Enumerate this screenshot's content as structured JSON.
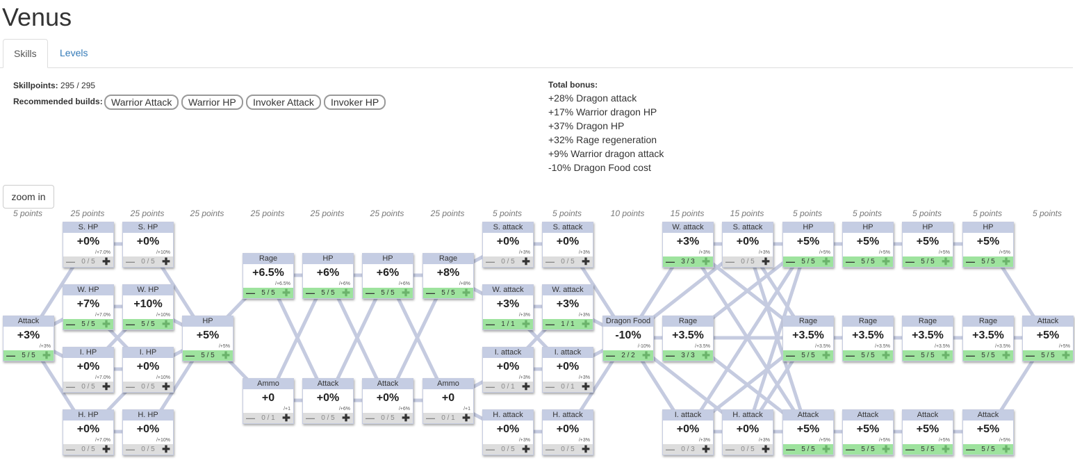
{
  "title": "Venus",
  "tabs": [
    {
      "label": "Skills"
    },
    {
      "label": "Levels"
    }
  ],
  "info": {
    "skillpoints_label": "Skillpoints:",
    "skillpoints_value": "295 / 295",
    "builds_label": "Recommended builds:",
    "builds": [
      "Warrior Attack",
      "Warrior HP",
      "Invoker Attack",
      "Invoker HP"
    ]
  },
  "bonus": {
    "title": "Total bonus:",
    "lines": [
      "+28% Dragon attack",
      "+17% Warrior dragon HP",
      "+37% Dragon HP",
      "+32% Rage regeneration",
      "+9% Warrior dragon attack",
      "-10% Dragon Food cost"
    ]
  },
  "zoom_label": "zoom in",
  "columns": [
    "5 points",
    "25 points",
    "25 points",
    "25 points",
    "25 points",
    "25 points",
    "25 points",
    "25 points",
    "5 points",
    "5 points",
    "10 points",
    "15 points",
    "15 points",
    "5 points",
    "5 points",
    "5 points",
    "5 points",
    "5 points"
  ],
  "nodes": [
    {
      "id": "c0",
      "name": "Attack",
      "value": "+3%",
      "inc": "/+3%",
      "count": "5 / 5",
      "on": true
    },
    {
      "id": "c1a",
      "name": "S. HP",
      "value": "+0%",
      "inc": "/+7.0%",
      "count": "0 / 5",
      "on": false
    },
    {
      "id": "c1b",
      "name": "W. HP",
      "value": "+7%",
      "inc": "/+7.0%",
      "count": "5 / 5",
      "on": true
    },
    {
      "id": "c1c",
      "name": "I. HP",
      "value": "+0%",
      "inc": "/+7.0%",
      "count": "0 / 5",
      "on": false
    },
    {
      "id": "c1d",
      "name": "H. HP",
      "value": "+0%",
      "inc": "/+7.0%",
      "count": "0 / 5",
      "on": false
    },
    {
      "id": "c2a",
      "name": "S. HP",
      "value": "+0%",
      "inc": "/+10%",
      "count": "0 / 5",
      "on": false
    },
    {
      "id": "c2b",
      "name": "W. HP",
      "value": "+10%",
      "inc": "/+10%",
      "count": "5 / 5",
      "on": true
    },
    {
      "id": "c2c",
      "name": "I. HP",
      "value": "+0%",
      "inc": "/+10%",
      "count": "0 / 5",
      "on": false
    },
    {
      "id": "c2d",
      "name": "H. HP",
      "value": "+0%",
      "inc": "/+10%",
      "count": "0 / 5",
      "on": false
    },
    {
      "id": "c3",
      "name": "HP",
      "value": "+5%",
      "inc": "/+5%",
      "count": "5 / 5",
      "on": true
    },
    {
      "id": "c4a",
      "name": "Rage",
      "value": "+6.5%",
      "inc": "/+6.5%",
      "count": "5 / 5",
      "on": true
    },
    {
      "id": "c4b",
      "name": "Ammo",
      "value": "+0",
      "inc": "/+1",
      "count": "0 / 1",
      "on": false
    },
    {
      "id": "c5a",
      "name": "HP",
      "value": "+6%",
      "inc": "/+6%",
      "count": "5 / 5",
      "on": true
    },
    {
      "id": "c5b",
      "name": "Attack",
      "value": "+0%",
      "inc": "/+6%",
      "count": "0 / 5",
      "on": false
    },
    {
      "id": "c6a",
      "name": "HP",
      "value": "+6%",
      "inc": "/+6%",
      "count": "5 / 5",
      "on": true
    },
    {
      "id": "c6b",
      "name": "Attack",
      "value": "+0%",
      "inc": "/+6%",
      "count": "0 / 5",
      "on": false
    },
    {
      "id": "c7a",
      "name": "Rage",
      "value": "+8%",
      "inc": "/+8%",
      "count": "5 / 5",
      "on": true
    },
    {
      "id": "c7b",
      "name": "Ammo",
      "value": "+0",
      "inc": "/+1",
      "count": "0 / 1",
      "on": false
    },
    {
      "id": "c8a",
      "name": "S. attack",
      "value": "+0%",
      "inc": "/+3%",
      "count": "0 / 5",
      "on": false
    },
    {
      "id": "c8b",
      "name": "W. attack",
      "value": "+3%",
      "inc": "/+3%",
      "count": "1 / 1",
      "on": true
    },
    {
      "id": "c8c",
      "name": "I. attack",
      "value": "+0%",
      "inc": "/+3%",
      "count": "0 / 1",
      "on": false
    },
    {
      "id": "c8d",
      "name": "H. attack",
      "value": "+0%",
      "inc": "/+3%",
      "count": "0 / 5",
      "on": false
    },
    {
      "id": "c9a",
      "name": "S. attack",
      "value": "+0%",
      "inc": "/+3%",
      "count": "0 / 5",
      "on": false
    },
    {
      "id": "c9b",
      "name": "W. attack",
      "value": "+3%",
      "inc": "/+3%",
      "count": "1 / 1",
      "on": true
    },
    {
      "id": "c9c",
      "name": "I. attack",
      "value": "+0%",
      "inc": "/+3%",
      "count": "0 / 1",
      "on": false
    },
    {
      "id": "c9d",
      "name": "H. attack",
      "value": "+0%",
      "inc": "/+3%",
      "count": "0 / 5",
      "on": false
    },
    {
      "id": "c10",
      "name": "Dragon Food",
      "value": "-10%",
      "inc": "/-10%",
      "count": "2 / 2",
      "on": true
    },
    {
      "id": "c11a",
      "name": "W. attack",
      "value": "+3%",
      "inc": "/+3%",
      "count": "3 / 3",
      "on": true
    },
    {
      "id": "c11b",
      "name": "Rage",
      "value": "+3.5%",
      "inc": "/+3.5%",
      "count": "3 / 3",
      "on": true
    },
    {
      "id": "c11c",
      "name": "I. attack",
      "value": "+0%",
      "inc": "/+3%",
      "count": "0 / 3",
      "on": false
    },
    {
      "id": "c12a",
      "name": "S. attack",
      "value": "+0%",
      "inc": "/+3%",
      "count": "0 / 5",
      "on": false
    },
    {
      "id": "c12b",
      "name": "H. attack",
      "value": "+0%",
      "inc": "/+3%",
      "count": "0 / 5",
      "on": false
    },
    {
      "id": "c13a",
      "name": "HP",
      "value": "+5%",
      "inc": "/+5%",
      "count": "5 / 5",
      "on": true
    },
    {
      "id": "c13b",
      "name": "Rage",
      "value": "+3.5%",
      "inc": "/+3.5%",
      "count": "5 / 5",
      "on": true
    },
    {
      "id": "c13c",
      "name": "Attack",
      "value": "+5%",
      "inc": "/+5%",
      "count": "5 / 5",
      "on": true
    },
    {
      "id": "c14a",
      "name": "HP",
      "value": "+5%",
      "inc": "/+5%",
      "count": "5 / 5",
      "on": true
    },
    {
      "id": "c14b",
      "name": "Rage",
      "value": "+3.5%",
      "inc": "/+3.5%",
      "count": "5 / 5",
      "on": true
    },
    {
      "id": "c14c",
      "name": "Attack",
      "value": "+5%",
      "inc": "/+5%",
      "count": "5 / 5",
      "on": true
    },
    {
      "id": "c15a",
      "name": "HP",
      "value": "+5%",
      "inc": "/+5%",
      "count": "5 / 5",
      "on": true
    },
    {
      "id": "c15b",
      "name": "Rage",
      "value": "+3.5%",
      "inc": "/+3.5%",
      "count": "5 / 5",
      "on": true
    },
    {
      "id": "c15c",
      "name": "Attack",
      "value": "+5%",
      "inc": "/+5%",
      "count": "5 / 5",
      "on": true
    },
    {
      "id": "c16a",
      "name": "HP",
      "value": "+5%",
      "inc": "/+5%",
      "count": "5 / 5",
      "on": true
    },
    {
      "id": "c16b",
      "name": "Rage",
      "value": "+3.5%",
      "inc": "/+3.5%",
      "count": "5 / 5",
      "on": true
    },
    {
      "id": "c16c",
      "name": "Attack",
      "value": "+5%",
      "inc": "/+5%",
      "count": "5 / 5",
      "on": true
    },
    {
      "id": "c17",
      "name": "Attack",
      "value": "+5%",
      "inc": "/+5%",
      "count": "5 / 5",
      "on": true
    }
  ],
  "colors": {
    "header": "#c5cde3",
    "active_footer": "#9ee39e",
    "inactive_footer": "#dddddd",
    "edge": "#c5cbe0"
  }
}
